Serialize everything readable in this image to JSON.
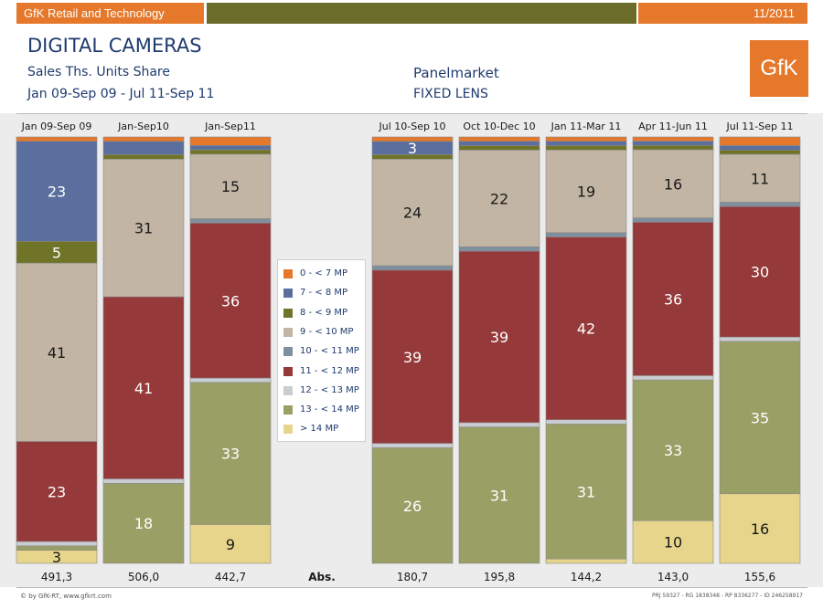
{
  "header": {
    "left_banner": "GfK Retail and Technology",
    "date": "11/2011",
    "title": "DIGITAL CAMERAS",
    "measure": "Sales Ths. Units Share",
    "periods": "Jan 09-Sep 09 - Jul 11-Sep 11",
    "panelmarket": "Panelmarket",
    "segment": "FIXED LENS",
    "logo": "GfK"
  },
  "colors": {
    "brand_orange": "#e5782a",
    "bar_olive": "#6b6b2a"
  },
  "abs_label": "Abs.",
  "footer": {
    "copyright": "© by GfK-RT, www.gfkrt.com",
    "ids": "PRJ 59327 - RG 1838348 - RP 8336277 - ID 246258917"
  },
  "chart_data": {
    "type": "bar",
    "stacked": true,
    "percent": true,
    "ylim": [
      0,
      100
    ],
    "categories": [
      "Jan 09-Sep 09",
      "Jan-Sep10",
      "Jan-Sep11",
      "Jul 10-Sep 10",
      "Oct 10-Dec 10",
      "Jan 11-Mar 11",
      "Apr 11-Jun 11",
      "Jul 11-Sep 11"
    ],
    "abs_values": [
      "491,3",
      "506,0",
      "442,7",
      "180,7",
      "195,8",
      "144,2",
      "143,0",
      "155,6"
    ],
    "series": [
      {
        "name": "0 - < 7 MP",
        "color": "#e5782a",
        "values": [
          1,
          1,
          2,
          1,
          1,
          1,
          1,
          2
        ]
      },
      {
        "name": "7 - < 8 MP",
        "color": "#5b6f9e",
        "values": [
          23,
          3,
          1,
          3,
          1,
          1,
          1,
          1
        ]
      },
      {
        "name": "8 - < 9 MP",
        "color": "#6f7428",
        "values": [
          5,
          1,
          1,
          1,
          1,
          1,
          1,
          1
        ]
      },
      {
        "name": "9 - < 10 MP",
        "color": "#c2b5a3",
        "values": [
          41,
          31,
          15,
          24,
          22,
          19,
          16,
          11
        ]
      },
      {
        "name": "10 - < 11 MP",
        "color": "#7f8f9e",
        "values": [
          0,
          0,
          1,
          1,
          1,
          1,
          1,
          1
        ]
      },
      {
        "name": "11 - < 12 MP",
        "color": "#96393a",
        "values": [
          23,
          41,
          36,
          39,
          39,
          42,
          36,
          30
        ]
      },
      {
        "name": "12 - < 13 MP",
        "color": "#c9ccd0",
        "values": [
          1,
          1,
          1,
          1,
          1,
          1,
          1,
          1
        ]
      },
      {
        "name": "13 - < 14 MP",
        "color": "#9a9f66",
        "values": [
          1,
          18,
          33,
          26,
          31,
          31,
          33,
          35
        ]
      },
      {
        "name": "> 14 MP",
        "color": "#e6d58a",
        "values": [
          3,
          0,
          9,
          0,
          0,
          1,
          10,
          16
        ]
      }
    ],
    "value_labels": [
      [
        "",
        "23",
        "5",
        "41",
        "",
        "23",
        "",
        "",
        "3"
      ],
      [
        "",
        "",
        "",
        "31",
        "",
        "41",
        "",
        "18",
        ""
      ],
      [
        "",
        "",
        "",
        "15",
        "",
        "36",
        "",
        "33",
        "9"
      ],
      [
        "",
        "3",
        "",
        "24",
        "",
        "39",
        "",
        "26",
        ""
      ],
      [
        "",
        "",
        "",
        "22",
        "",
        "39",
        "",
        "31",
        ""
      ],
      [
        "",
        "",
        "",
        "19",
        "",
        "42",
        "",
        "31",
        ""
      ],
      [
        "",
        "",
        "",
        "16",
        "",
        "36",
        "",
        "33",
        "10"
      ],
      [
        "",
        "",
        "",
        "11",
        "",
        "30",
        "",
        "35",
        "16"
      ]
    ]
  }
}
